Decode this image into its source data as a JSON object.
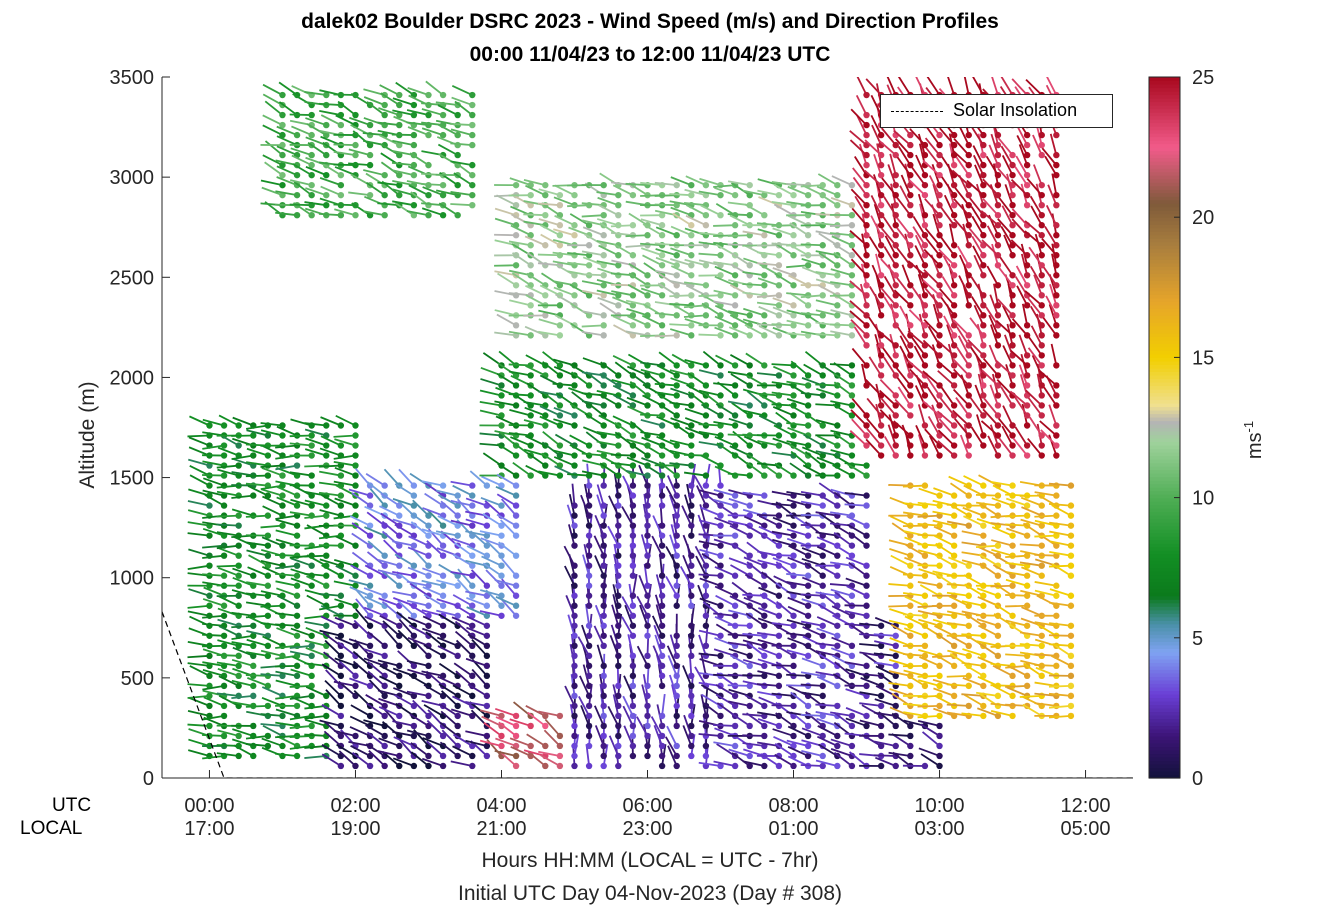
{
  "title_line1": "dalek02 Boulder DSRC 2023 - Wind Speed (m/s) and Direction Profiles",
  "title_line2": "00:00 11/04/23 to 12:00 11/04/23  UTC",
  "xlabel_line1": "Hours HH:MM  (LOCAL = UTC - 7hr)",
  "xlabel_line2": "Initial UTC Day 04-Nov-2023 (Day # 308)",
  "ylabel": "Altitude (m)",
  "utc_row_label": "UTC",
  "local_row_label": "LOCAL",
  "colorbar_unit": "ms",
  "colorbar_unit_exp": "-1",
  "legend_label": "Solar Insolation",
  "chart_data": {
    "type": "scatter",
    "subtype": "wind-barb profiles (time-height)",
    "title": "dalek02 Boulder DSRC 2023 - Wind Speed (m/s) and Direction Profiles",
    "subtitle": "00:00 11/04/23 to 12:00 11/04/23  UTC",
    "xlabel": "Hours HH:MM  (LOCAL = UTC - 7hr)",
    "ylabel": "Altitude (m)",
    "xlim": [
      -0.65,
      12.65
    ],
    "ylim": [
      0,
      3500
    ],
    "x_ticks_hours": [
      0,
      2,
      4,
      6,
      8,
      10,
      12
    ],
    "x_tick_labels_utc": [
      "00:00",
      "02:00",
      "04:00",
      "06:00",
      "08:00",
      "10:00",
      "12:00"
    ],
    "x_tick_labels_local": [
      "17:00",
      "19:00",
      "21:00",
      "23:00",
      "01:00",
      "03:00",
      "05:00"
    ],
    "y_ticks": [
      0,
      500,
      1000,
      1500,
      2000,
      2500,
      3000,
      3500
    ],
    "colorbar": {
      "label": "ms-1",
      "range": [
        0,
        25
      ],
      "ticks": [
        0,
        5,
        10,
        15,
        20,
        25
      ],
      "stops": [
        {
          "v": 0,
          "c": "#12123a"
        },
        {
          "v": 1.5,
          "c": "#3c1477"
        },
        {
          "v": 3,
          "c": "#6a3fd6"
        },
        {
          "v": 4.5,
          "c": "#7fa3f2"
        },
        {
          "v": 5.5,
          "c": "#4a90a8"
        },
        {
          "v": 6.5,
          "c": "#0b7a1c"
        },
        {
          "v": 8,
          "c": "#138f24"
        },
        {
          "v": 10,
          "c": "#4fae55"
        },
        {
          "v": 12,
          "c": "#9fd29c"
        },
        {
          "v": 12.7,
          "c": "#b4b4b4"
        },
        {
          "v": 13.3,
          "c": "#f0e090"
        },
        {
          "v": 15,
          "c": "#f2cf00"
        },
        {
          "v": 17,
          "c": "#e6a52a"
        },
        {
          "v": 19,
          "c": "#a97e3e"
        },
        {
          "v": 20.5,
          "c": "#7f5a3a"
        },
        {
          "v": 22.5,
          "c": "#f25b8a"
        },
        {
          "v": 25,
          "c": "#a8081e"
        }
      ]
    },
    "solar_insolation_line": {
      "name": "Solar Insolation",
      "style": "dashed",
      "points": [
        [
          -0.65,
          830
        ],
        [
          0.2,
          0
        ],
        [
          12.65,
          0
        ]
      ]
    },
    "series_times_hours": [
      0,
      0.2,
      0.4,
      0.6,
      0.8,
      1.0,
      1.2,
      1.4,
      1.6,
      1.8,
      2.0,
      2.2,
      2.4,
      2.6,
      2.8,
      3.0,
      3.2,
      3.4,
      3.6,
      3.8,
      4.0,
      4.2,
      4.4,
      4.6,
      4.8,
      5.0,
      5.2,
      5.4,
      5.6,
      5.8,
      6.0,
      6.2,
      6.4,
      6.6,
      6.8,
      7.0,
      7.2,
      7.4,
      7.6,
      7.8,
      8.0,
      8.2,
      8.4,
      8.6,
      8.8,
      9.0,
      9.2,
      9.4,
      9.6,
      9.8,
      10.0,
      10.2,
      10.4,
      10.6,
      10.8,
      11.0,
      11.2,
      11.4,
      11.6,
      11.8
    ],
    "wind_zones": [
      {
        "t": [
          0.0,
          2.0
        ],
        "h": [
          100,
          1800
        ],
        "speed": 7.5,
        "dir_deg": 280,
        "note": "westerly green band"
      },
      {
        "t": [
          1.8,
          3.8
        ],
        "h": [
          60,
          800
        ],
        "speed": 1.0,
        "dir_deg": 300,
        "note": "near-calm dark core"
      },
      {
        "t": [
          2.2,
          4.2
        ],
        "h": [
          800,
          1500
        ],
        "speed": 4.2,
        "dir_deg": 300
      },
      {
        "t": [
          4.0,
          5.6
        ],
        "h": [
          60,
          350
        ],
        "speed": 22,
        "dir_deg": 300,
        "note": "strong low-level jet"
      },
      {
        "t": [
          5.0,
          7.0
        ],
        "h": [
          60,
          1500
        ],
        "speed": 2.0,
        "dir_deg": 350
      },
      {
        "t": [
          7.0,
          9.0
        ],
        "h": [
          60,
          1450
        ],
        "speed": 2.2,
        "dir_deg": 290
      },
      {
        "t": [
          9.0,
          10.0
        ],
        "h": [
          60,
          800
        ],
        "speed": 1.8,
        "dir_deg": 290
      },
      {
        "t": [
          9.5,
          11.8
        ],
        "h": [
          300,
          1500
        ],
        "speed": 16,
        "dir_deg": 285
      },
      {
        "t": [
          4.0,
          9.0
        ],
        "h": [
          1500,
          2100
        ],
        "speed": 7.5,
        "dir_deg": 290
      },
      {
        "t": [
          1.0,
          3.7
        ],
        "h": [
          2800,
          3450
        ],
        "speed": 9.5,
        "dir_deg": 290
      },
      {
        "t": [
          4.2,
          9.3
        ],
        "h": [
          2200,
          3000
        ],
        "speed": 11.5,
        "dir_deg": 285
      },
      {
        "t": [
          9.0,
          11.6
        ],
        "h": [
          1600,
          3500
        ],
        "speed": 24.5,
        "dir_deg": 330,
        "note": "strong NW jet aloft"
      }
    ]
  }
}
